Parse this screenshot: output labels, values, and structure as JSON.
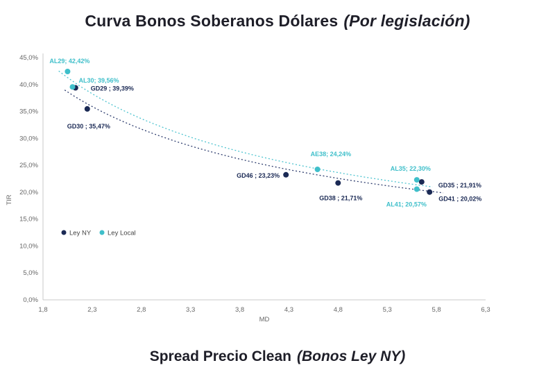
{
  "title": {
    "main": "Curva Bonos Soberanos Dólares",
    "italic": "(Por legislación)"
  },
  "subtitle": {
    "main": "Spread Precio Clean",
    "italic": "(Bonos Ley NY)"
  },
  "chart_data": {
    "type": "scatter",
    "title": "Curva Bonos Soberanos Dólares (Por legislación)",
    "xlabel": "MD",
    "ylabel": "TIR",
    "xlim": [
      1.8,
      6.3
    ],
    "ylim": [
      0,
      45
    ],
    "x_tick_step": 0.5,
    "y_tick_step": 5,
    "x_ticks": [
      "1,8",
      "2,3",
      "2,8",
      "3,3",
      "3,8",
      "4,3",
      "4,8",
      "5,3",
      "5,8",
      "6,3"
    ],
    "y_ticks": [
      "0,0%",
      "5,0%",
      "10,0%",
      "15,0%",
      "20,0%",
      "25,0%",
      "30,0%",
      "35,0%",
      "40,0%",
      "45,0%"
    ],
    "grid": false,
    "axis_color": "#c9c9c9",
    "legend_position": "inside-lower-left",
    "legend": [
      {
        "name": "Ley NY",
        "color": "#1b2a55",
        "x": 92
      },
      {
        "name": "Ley Local",
        "color": "#3fbfca",
        "x": 147
      }
    ],
    "series": [
      {
        "name": "Ley NY",
        "color": "#1b2a55",
        "label_color": "#1b2a55",
        "trend_color": "#2e3d6e",
        "trend_style": "dotted",
        "trend_fit": "power",
        "trend_from": 2.02,
        "trend_to": 5.88,
        "points": [
          {
            "bond": "GD29",
            "md": 2.13,
            "tir": 39.39,
            "label": "GD29 ; 39,39%",
            "dx": 22,
            "dy": 4,
            "anchor": "start"
          },
          {
            "bond": "GD30",
            "md": 2.25,
            "tir": 35.47,
            "label": "GD30 ; 35,47%",
            "dx": -29,
            "dy": 28,
            "anchor": "start"
          },
          {
            "bond": "GD46",
            "md": 4.27,
            "tir": 23.23,
            "label": "GD46 ; 23,23%",
            "dx": -9,
            "dy": 4,
            "anchor": "end"
          },
          {
            "bond": "GD38",
            "md": 4.8,
            "tir": 21.71,
            "label": "GD38 ; 21,71%",
            "dx": -27,
            "dy": 25,
            "anchor": "start"
          },
          {
            "bond": "GD35",
            "md": 5.65,
            "tir": 21.91,
            "label": "GD35 ; 21,91%",
            "dx": 24,
            "dy": 8,
            "anchor": "start"
          },
          {
            "bond": "GD41",
            "md": 5.73,
            "tir": 20.02,
            "label": "GD41 ; 20,02%",
            "dx": 13,
            "dy": 13,
            "anchor": "start"
          }
        ]
      },
      {
        "name": "Ley Local",
        "color": "#3fbfca",
        "label_color": "#3fbfca",
        "trend_color": "#4cc3cf",
        "trend_style": "dotted",
        "trend_fit": "power",
        "trend_from": 1.96,
        "trend_to": 5.8,
        "points": [
          {
            "bond": "AL29",
            "md": 2.05,
            "tir": 42.42,
            "label": "AL29; 42,42%",
            "dx": -26,
            "dy": -12,
            "anchor": "start"
          },
          {
            "bond": "AL30",
            "md": 2.1,
            "tir": 39.56,
            "label": "AL30; 39,56%",
            "dx": 9,
            "dy": -6,
            "anchor": "start"
          },
          {
            "bond": "AE38",
            "md": 4.59,
            "tir": 24.24,
            "label": "AE38; 24,24%",
            "dx": -10,
            "dy": -19,
            "anchor": "start"
          },
          {
            "bond": "AL35",
            "md": 5.6,
            "tir": 22.3,
            "label": "AL35; 22,30%",
            "dx": -38,
            "dy": -13,
            "anchor": "start"
          },
          {
            "bond": "AL41",
            "md": 5.6,
            "tir": 20.57,
            "label": "AL41; 20,57%",
            "dx": -44,
            "dy": 25,
            "anchor": "start"
          }
        ]
      }
    ]
  }
}
